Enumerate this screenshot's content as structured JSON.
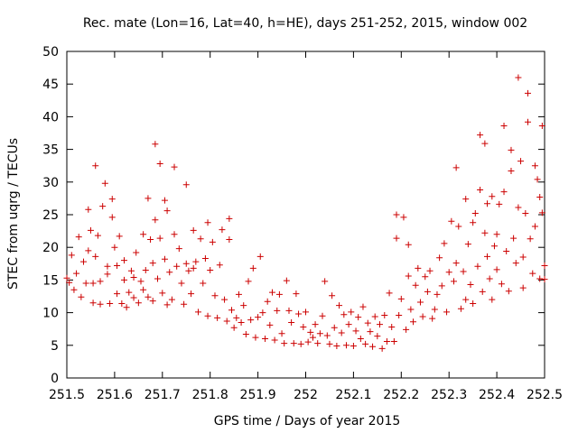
{
  "chart_data": {
    "type": "scatter",
    "title": "Rec. mate (Lon=16, Lat=40, h=HE), days 251-252, 2015, window 002",
    "xlabel": "GPS time / Days of year 2015",
    "ylabel": "STEC from uqrg / TECUs",
    "xlim": [
      251.5,
      252.5
    ],
    "ylim": [
      0,
      50
    ],
    "xticks": [
      "251.5",
      "251.6",
      "251.7",
      "251.8",
      "251.9",
      "252",
      "252.1",
      "252.2",
      "252.3",
      "252.4",
      "252.5"
    ],
    "yticks": [
      "0",
      "5",
      "10",
      "15",
      "20",
      "25",
      "30",
      "35",
      "40",
      "45",
      "50"
    ],
    "grid": false,
    "marker": "+",
    "color": "#cc0000",
    "points": [
      [
        251.5,
        15.3
      ],
      [
        251.505,
        14.6
      ],
      [
        251.51,
        18.8
      ],
      [
        251.515,
        13.5
      ],
      [
        251.52,
        16.0
      ],
      [
        251.525,
        21.6
      ],
      [
        251.53,
        12.4
      ],
      [
        251.535,
        17.8
      ],
      [
        251.54,
        14.5
      ],
      [
        251.545,
        19.5
      ],
      [
        251.545,
        25.8
      ],
      [
        251.55,
        22.6
      ],
      [
        251.555,
        14.5
      ],
      [
        251.555,
        11.5
      ],
      [
        251.56,
        18.6
      ],
      [
        251.56,
        32.5
      ],
      [
        251.565,
        21.8
      ],
      [
        251.57,
        14.8
      ],
      [
        251.57,
        11.3
      ],
      [
        251.575,
        26.3
      ],
      [
        251.58,
        29.8
      ],
      [
        251.585,
        17.1
      ],
      [
        251.585,
        15.9
      ],
      [
        251.59,
        11.4
      ],
      [
        251.595,
        24.6
      ],
      [
        251.595,
        27.4
      ],
      [
        251.6,
        20.0
      ],
      [
        251.605,
        17.2
      ],
      [
        251.605,
        12.9
      ],
      [
        251.61,
        21.7
      ],
      [
        251.615,
        11.4
      ],
      [
        251.62,
        18.0
      ],
      [
        251.62,
        15.0
      ],
      [
        251.625,
        10.8
      ],
      [
        251.63,
        13.1
      ],
      [
        251.635,
        16.4
      ],
      [
        251.64,
        15.4
      ],
      [
        251.64,
        12.3
      ],
      [
        251.645,
        19.2
      ],
      [
        251.65,
        11.5
      ],
      [
        251.655,
        14.8
      ],
      [
        251.66,
        13.5
      ],
      [
        251.66,
        22.0
      ],
      [
        251.665,
        16.5
      ],
      [
        251.67,
        12.4
      ],
      [
        251.67,
        27.5
      ],
      [
        251.675,
        21.2
      ],
      [
        251.68,
        17.6
      ],
      [
        251.68,
        11.8
      ],
      [
        251.685,
        24.2
      ],
      [
        251.685,
        35.8
      ],
      [
        251.69,
        15.2
      ],
      [
        251.695,
        21.4
      ],
      [
        251.695,
        32.8
      ],
      [
        251.7,
        13.0
      ],
      [
        251.705,
        18.2
      ],
      [
        251.705,
        27.2
      ],
      [
        251.71,
        25.6
      ],
      [
        251.71,
        11.2
      ],
      [
        251.715,
        16.2
      ],
      [
        251.72,
        12.0
      ],
      [
        251.725,
        32.3
      ],
      [
        251.725,
        22.0
      ],
      [
        251.73,
        17.1
      ],
      [
        251.735,
        19.8
      ],
      [
        251.74,
        14.5
      ],
      [
        251.745,
        11.3
      ],
      [
        251.75,
        29.6
      ],
      [
        251.75,
        17.5
      ],
      [
        251.755,
        16.4
      ],
      [
        251.76,
        12.9
      ],
      [
        251.765,
        22.6
      ],
      [
        251.765,
        16.8
      ],
      [
        251.77,
        17.8
      ],
      [
        251.775,
        10.1
      ],
      [
        251.78,
        21.3
      ],
      [
        251.785,
        14.5
      ],
      [
        251.79,
        18.3
      ],
      [
        251.795,
        23.8
      ],
      [
        251.795,
        9.5
      ],
      [
        251.8,
        16.5
      ],
      [
        251.805,
        20.8
      ],
      [
        251.81,
        12.6
      ],
      [
        251.815,
        9.2
      ],
      [
        251.82,
        17.3
      ],
      [
        251.825,
        22.7
      ],
      [
        251.83,
        12.0
      ],
      [
        251.835,
        8.7
      ],
      [
        251.84,
        24.4
      ],
      [
        251.84,
        21.2
      ],
      [
        251.845,
        10.4
      ],
      [
        251.85,
        7.7
      ],
      [
        251.855,
        9.2
      ],
      [
        251.86,
        12.8
      ],
      [
        251.865,
        8.5
      ],
      [
        251.87,
        11.1
      ],
      [
        251.875,
        6.7
      ],
      [
        251.88,
        14.8
      ],
      [
        251.885,
        8.9
      ],
      [
        251.89,
        16.8
      ],
      [
        251.895,
        6.2
      ],
      [
        251.9,
        9.3
      ],
      [
        251.905,
        18.6
      ],
      [
        251.91,
        10.0
      ],
      [
        251.915,
        6.0
      ],
      [
        251.92,
        11.7
      ],
      [
        251.925,
        8.1
      ],
      [
        251.93,
        13.1
      ],
      [
        251.935,
        5.8
      ],
      [
        251.94,
        10.3
      ],
      [
        251.945,
        12.8
      ],
      [
        251.95,
        6.8
      ],
      [
        251.955,
        5.3
      ],
      [
        251.96,
        14.9
      ],
      [
        251.965,
        10.3
      ],
      [
        251.97,
        8.5
      ],
      [
        251.975,
        5.3
      ],
      [
        251.98,
        12.9
      ],
      [
        251.985,
        9.8
      ],
      [
        251.99,
        5.2
      ],
      [
        251.995,
        7.8
      ],
      [
        252.0,
        10.1
      ],
      [
        252.005,
        5.5
      ],
      [
        252.01,
        7.0
      ],
      [
        252.015,
        6.2
      ],
      [
        252.02,
        8.2
      ],
      [
        252.025,
        5.3
      ],
      [
        252.03,
        6.8
      ],
      [
        252.035,
        9.5
      ],
      [
        252.04,
        14.8
      ],
      [
        252.045,
        6.5
      ],
      [
        252.05,
        5.2
      ],
      [
        252.055,
        12.6
      ],
      [
        252.06,
        7.7
      ],
      [
        252.065,
        4.9
      ],
      [
        252.07,
        11.1
      ],
      [
        252.075,
        6.9
      ],
      [
        252.08,
        9.7
      ],
      [
        252.085,
        5.0
      ],
      [
        252.09,
        8.2
      ],
      [
        252.095,
        10.1
      ],
      [
        252.1,
        4.9
      ],
      [
        252.105,
        7.2
      ],
      [
        252.11,
        9.3
      ],
      [
        252.115,
        6.0
      ],
      [
        252.12,
        10.9
      ],
      [
        252.125,
        5.2
      ],
      [
        252.13,
        8.4
      ],
      [
        252.135,
        7.1
      ],
      [
        252.14,
        4.8
      ],
      [
        252.145,
        9.4
      ],
      [
        252.15,
        6.4
      ],
      [
        252.155,
        8.2
      ],
      [
        252.16,
        4.5
      ],
      [
        252.165,
        9.6
      ],
      [
        252.17,
        5.6
      ],
      [
        252.175,
        13.0
      ],
      [
        252.18,
        7.8
      ],
      [
        252.185,
        5.6
      ],
      [
        252.19,
        21.4
      ],
      [
        252.19,
        25.0
      ],
      [
        252.195,
        9.6
      ],
      [
        252.2,
        12.1
      ],
      [
        252.205,
        24.6
      ],
      [
        252.21,
        7.4
      ],
      [
        252.215,
        15.6
      ],
      [
        252.215,
        20.4
      ],
      [
        252.22,
        10.5
      ],
      [
        252.225,
        8.6
      ],
      [
        252.23,
        14.2
      ],
      [
        252.235,
        16.8
      ],
      [
        252.24,
        11.6
      ],
      [
        252.245,
        9.4
      ],
      [
        252.25,
        15.5
      ],
      [
        252.255,
        13.2
      ],
      [
        252.26,
        16.4
      ],
      [
        252.265,
        9.1
      ],
      [
        252.27,
        10.5
      ],
      [
        252.275,
        12.8
      ],
      [
        252.28,
        18.4
      ],
      [
        252.285,
        14.1
      ],
      [
        252.29,
        20.6
      ],
      [
        252.295,
        10.1
      ],
      [
        252.3,
        16.2
      ],
      [
        252.305,
        24.0
      ],
      [
        252.31,
        14.8
      ],
      [
        252.315,
        17.6
      ],
      [
        252.315,
        32.2
      ],
      [
        252.32,
        23.2
      ],
      [
        252.325,
        10.6
      ],
      [
        252.33,
        16.3
      ],
      [
        252.335,
        12.0
      ],
      [
        252.335,
        27.4
      ],
      [
        252.34,
        20.5
      ],
      [
        252.345,
        14.3
      ],
      [
        252.35,
        23.8
      ],
      [
        252.35,
        11.4
      ],
      [
        252.355,
        25.2
      ],
      [
        252.36,
        17.1
      ],
      [
        252.365,
        37.2
      ],
      [
        252.365,
        28.8
      ],
      [
        252.37,
        13.2
      ],
      [
        252.375,
        22.2
      ],
      [
        252.375,
        35.9
      ],
      [
        252.38,
        18.6
      ],
      [
        252.38,
        26.7
      ],
      [
        252.385,
        15.2
      ],
      [
        252.39,
        27.8
      ],
      [
        252.39,
        12.0
      ],
      [
        252.395,
        20.2
      ],
      [
        252.4,
        16.6
      ],
      [
        252.4,
        22.0
      ],
      [
        252.405,
        26.6
      ],
      [
        252.41,
        14.4
      ],
      [
        252.415,
        38.6
      ],
      [
        252.415,
        28.5
      ],
      [
        252.42,
        19.4
      ],
      [
        252.425,
        13.3
      ],
      [
        252.43,
        34.9
      ],
      [
        252.43,
        31.7
      ],
      [
        252.435,
        21.4
      ],
      [
        252.44,
        17.6
      ],
      [
        252.445,
        46.0
      ],
      [
        252.445,
        26.1
      ],
      [
        252.45,
        33.2
      ],
      [
        252.455,
        18.5
      ],
      [
        252.455,
        13.8
      ],
      [
        252.46,
        25.2
      ],
      [
        252.465,
        43.6
      ],
      [
        252.465,
        39.2
      ],
      [
        252.47,
        21.3
      ],
      [
        252.475,
        16.0
      ],
      [
        252.48,
        32.5
      ],
      [
        252.48,
        23.2
      ],
      [
        252.485,
        30.4
      ],
      [
        252.49,
        15.2
      ],
      [
        252.49,
        27.7
      ],
      [
        252.495,
        38.6
      ],
      [
        252.495,
        25.3
      ],
      [
        252.5,
        17.2
      ],
      [
        252.5,
        15.1
      ]
    ]
  }
}
